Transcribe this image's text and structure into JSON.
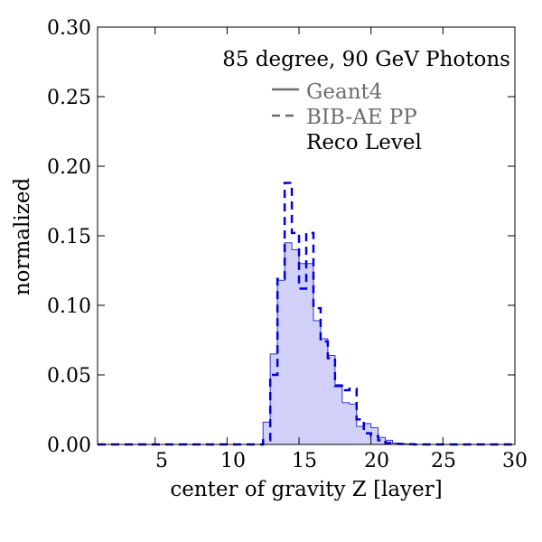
{
  "chart_data": {
    "type": "histogram",
    "title": "85 degree, 90 GeV Photons",
    "xlabel": "center of gravity Z [layer]",
    "ylabel": "normalized",
    "xlim": [
      1,
      30
    ],
    "ylim": [
      0,
      0.3
    ],
    "xticks": [
      "5",
      "10",
      "15",
      "20",
      "25",
      "30"
    ],
    "xtick_values": [
      5,
      10,
      15,
      20,
      25,
      30
    ],
    "yticks": [
      "0.00",
      "0.05",
      "0.10",
      "0.15",
      "0.20",
      "0.25",
      "0.30"
    ],
    "ytick_values": [
      0,
      0.05,
      0.1,
      0.15,
      0.2,
      0.25,
      0.3
    ],
    "grid": false,
    "legend": {
      "placement": "top-right",
      "entries": [
        {
          "label": "Geant4",
          "style": "solid",
          "color": "#6d6d6d"
        },
        {
          "label": "BIB-AE PP",
          "style": "dashed",
          "color": "#6d6d6d"
        }
      ],
      "note": "Reco Level"
    },
    "bin_edges": [
      12.5,
      13.0,
      13.5,
      14.0,
      14.5,
      15.0,
      15.5,
      16.0,
      16.5,
      17.0,
      17.5,
      18.0,
      18.5,
      19.0,
      19.5,
      20.0,
      20.5,
      21.0,
      21.5,
      22.0,
      22.5,
      23.0
    ],
    "series": [
      {
        "name": "Geant4",
        "style": "filled-step",
        "fill": "#d0d0f8",
        "stroke": "#3333cc",
        "values": [
          0.016,
          0.065,
          0.118,
          0.145,
          0.14,
          0.13,
          0.13,
          0.089,
          0.076,
          0.064,
          0.043,
          0.03,
          0.029,
          0.013,
          0.015,
          0.012,
          0.005,
          0.003,
          0.001,
          0.0005,
          0.0003
        ]
      },
      {
        "name": "BIB-AE PP",
        "style": "dashed-step",
        "stroke": "#0000dd",
        "values": [
          0.003,
          0.05,
          0.119,
          0.188,
          0.152,
          0.112,
          0.152,
          0.098,
          0.074,
          0.062,
          0.042,
          0.039,
          0.04,
          0.018,
          0.008,
          0.006,
          0.003,
          0.001,
          0.0005,
          0.0003,
          0.0002
        ]
      }
    ]
  }
}
